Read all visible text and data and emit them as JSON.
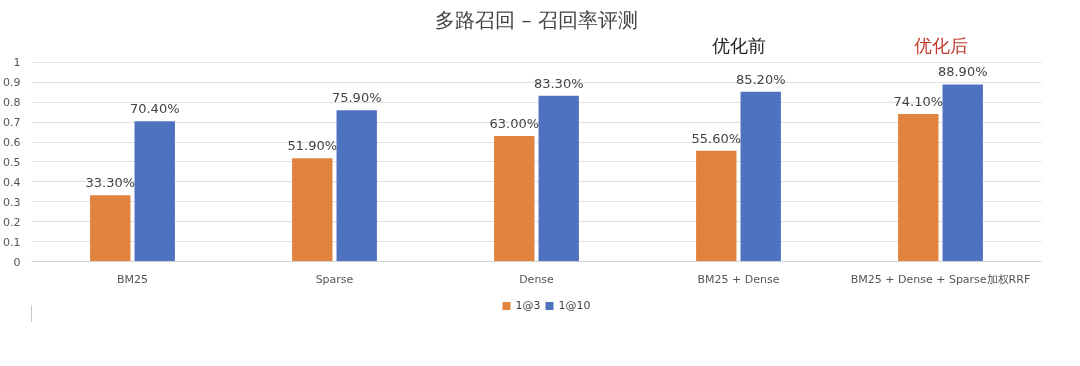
{
  "chart_data": {
    "type": "bar",
    "title": "多路召回 – 召回率评测",
    "categories": [
      "BM25",
      "Sparse",
      "Dense",
      "BM25 + Dense",
      "BM25 + Dense + Sparse加权RRF"
    ],
    "series": [
      {
        "name": "1@3",
        "color": "#e2823f",
        "values": [
          0.333,
          0.519,
          0.63,
          0.556,
          0.741
        ],
        "value_labels": [
          "33.30%",
          "51.90%",
          "63.00%",
          "55.60%",
          "74.10%"
        ]
      },
      {
        "name": "1@10",
        "color": "#4f72c0",
        "values": [
          0.704,
          0.759,
          0.833,
          0.852,
          0.889
        ],
        "value_labels": [
          "70.40%",
          "75.90%",
          "83.30%",
          "85.20%",
          "88.90%"
        ]
      }
    ],
    "ylim": [
      0,
      1
    ],
    "yticks": [
      0,
      0.1,
      0.2,
      0.3,
      0.4,
      0.5,
      0.6,
      0.7,
      0.8,
      0.9,
      1
    ],
    "grid": "y",
    "legend": "bottom",
    "annotations": [
      "优化前",
      "优化后"
    ]
  }
}
